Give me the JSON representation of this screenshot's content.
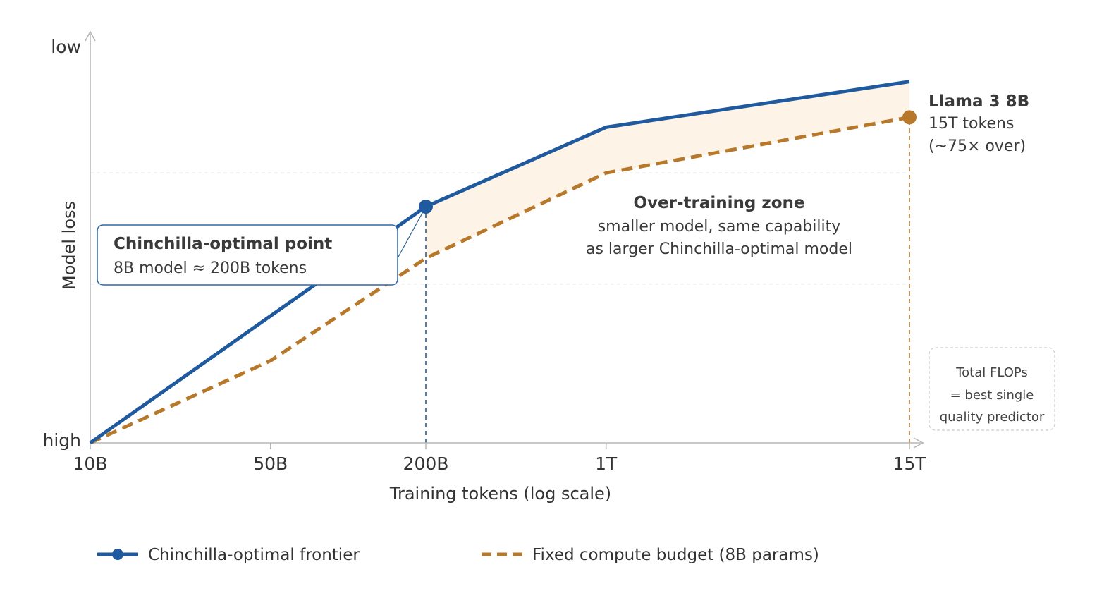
{
  "chart_data": {
    "type": "line",
    "x_scale": "log",
    "xlabel": "Training tokens (log scale)",
    "ylabel": "Model loss",
    "x_tick_labels": [
      "10B",
      "50B",
      "200B",
      "1T",
      "15T"
    ],
    "x_tick_values": [
      10,
      50,
      200,
      1000,
      15000
    ],
    "y_tick_labels": [
      "high",
      "low"
    ],
    "y_tick_values": [
      0,
      100
    ],
    "ylim": [
      0,
      100
    ],
    "series": [
      {
        "name": "Chinchilla-optimal frontier",
        "style": "solid",
        "color": "#1f5a9e",
        "x": [
          10,
          200,
          1000,
          15000
        ],
        "y": [
          0,
          59.5,
          79.5,
          91
        ]
      },
      {
        "name": "Fixed compute budget (8B params)",
        "style": "dashed",
        "color": "#b8782a",
        "x": [
          10,
          50,
          200,
          1000,
          15000
        ],
        "y": [
          0,
          20.7,
          46.5,
          68,
          82
        ]
      }
    ],
    "highlighted_points": [
      {
        "series": "Chinchilla-optimal frontier",
        "x": 200,
        "y": 59.5,
        "color": "#1f5a9e"
      },
      {
        "series": "Fixed compute budget (8B params)",
        "x": 15000,
        "y": 82,
        "color": "#b8782a"
      }
    ],
    "shaded_region": {
      "label": "Over-training zone",
      "x_from": 200,
      "x_to": 15000,
      "between": [
        "Chinchilla-optimal frontier",
        "Fixed compute budget (8B params)"
      ],
      "color": "#fdf3e7"
    },
    "reference_gridlines_y": [
      68,
      40
    ],
    "vertical_markers": [
      {
        "x": 200,
        "color": "#2b5d8f"
      },
      {
        "x": 15000,
        "color": "#b8782a"
      }
    ],
    "annotations": {
      "chinchilla_point": {
        "title": "Chinchilla-optimal point",
        "body": "8B model ≈ 200B tokens"
      },
      "zone": {
        "title": "Over-training zone",
        "line1": "smaller model, same capability",
        "line2": "as larger Chinchilla-optimal model"
      },
      "llama": {
        "title": "Llama 3 8B",
        "line1": "15T tokens",
        "line2": "(~75× over)"
      },
      "flops_note": {
        "line1": "Total FLOPs",
        "line2": "= best single",
        "line3": "quality predictor"
      }
    },
    "legend": {
      "position": "bottom",
      "entries": [
        "Chinchilla-optimal frontier",
        "Fixed compute budget (8B params)"
      ]
    }
  }
}
